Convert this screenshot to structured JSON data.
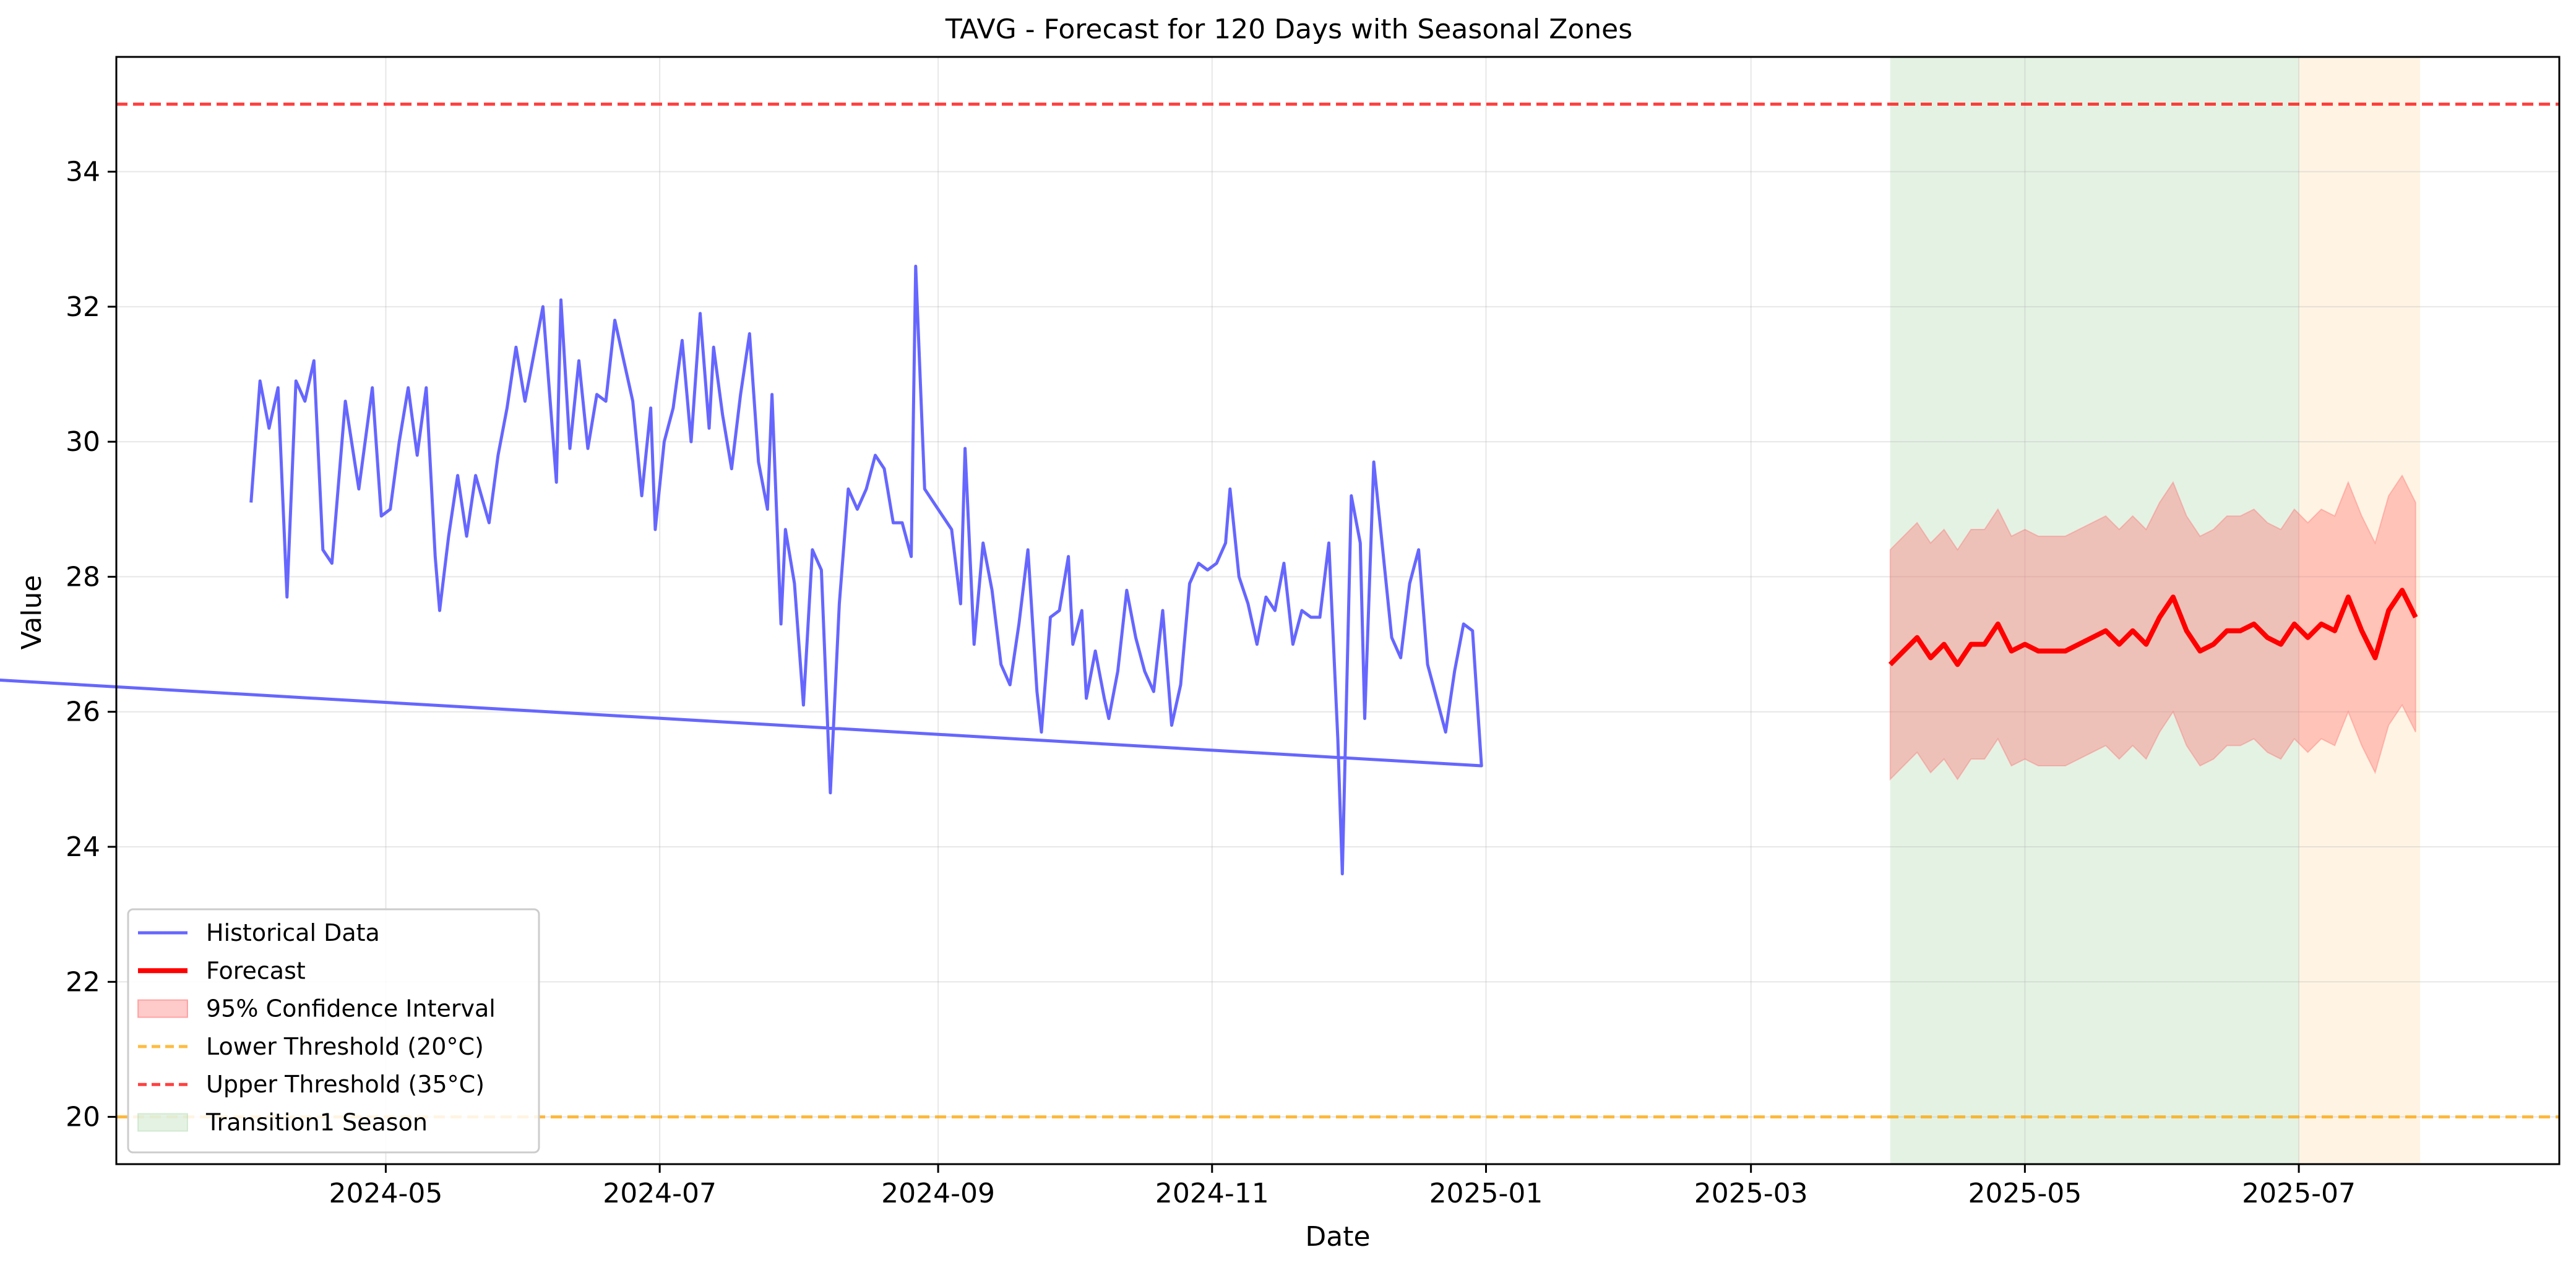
{
  "chart_data": {
    "type": "line",
    "title": "TAVG - Forecast for 120 Days with Seasonal Zones",
    "xlabel": "Date",
    "ylabel": "Value",
    "x_axis_type": "date",
    "x_range": [
      "2024-03-02",
      "2025-08-28"
    ],
    "ylim": [
      19.3,
      35.7
    ],
    "grid": true,
    "legend_position": "lower-left",
    "x_ticks": [
      "2024-05",
      "2024-07",
      "2024-09",
      "2024-11",
      "2025-01",
      "2025-03",
      "2025-05",
      "2025-07"
    ],
    "x_tick_dates": [
      "2024-05-01",
      "2024-07-01",
      "2024-09-01",
      "2024-11-01",
      "2025-01-01",
      "2025-03-01",
      "2025-05-01",
      "2025-07-01"
    ],
    "y_ticks": [
      20,
      22,
      24,
      26,
      28,
      30,
      32,
      34
    ],
    "historical": {
      "name": "Historical Data",
      "color": "#6666ff",
      "points": [
        [
          "2024-04-01",
          29.1
        ],
        [
          "2024-04-03",
          30.9
        ],
        [
          "2024-04-05",
          30.2
        ],
        [
          "2024-04-07",
          30.8
        ],
        [
          "2024-04-09",
          27.7
        ],
        [
          "2024-04-11",
          30.9
        ],
        [
          "2024-04-13",
          30.6
        ],
        [
          "2024-04-15",
          31.2
        ],
        [
          "2024-04-17",
          28.4
        ],
        [
          "2024-04-19",
          28.2
        ],
        [
          "2024-04-22",
          30.6
        ],
        [
          "2024-04-25",
          29.3
        ],
        [
          "2024-04-28",
          30.8
        ],
        [
          "2024-04-30",
          28.9
        ],
        [
          "2024-05-02",
          29.0
        ],
        [
          "2024-05-04",
          30.0
        ],
        [
          "2024-05-06",
          30.8
        ],
        [
          "2024-05-08",
          29.8
        ],
        [
          "2024-05-10",
          30.8
        ],
        [
          "2024-05-12",
          28.3
        ],
        [
          "2024-05-13",
          27.5
        ],
        [
          "2024-05-15",
          28.6
        ],
        [
          "2024-05-17",
          29.5
        ],
        [
          "2024-05-19",
          28.6
        ],
        [
          "2024-05-21",
          29.5
        ],
        [
          "2024-05-24",
          28.8
        ],
        [
          "2024-05-26",
          29.8
        ],
        [
          "2024-05-28",
          30.5
        ],
        [
          "2024-05-30",
          31.4
        ],
        [
          "2024-06-01",
          30.6
        ],
        [
          "2024-06-03",
          31.3
        ],
        [
          "2024-06-05",
          32.0
        ],
        [
          "2024-06-08",
          29.4
        ],
        [
          "2024-06-09",
          32.1
        ],
        [
          "2024-06-11",
          29.9
        ],
        [
          "2024-06-13",
          31.2
        ],
        [
          "2024-06-15",
          29.9
        ],
        [
          "2024-06-17",
          30.7
        ],
        [
          "2024-06-19",
          30.6
        ],
        [
          "2024-06-21",
          31.8
        ],
        [
          "2024-06-23",
          31.2
        ],
        [
          "2024-06-25",
          30.6
        ],
        [
          "2024-06-27",
          29.2
        ],
        [
          "2024-06-29",
          30.5
        ],
        [
          "2024-06-30",
          28.7
        ],
        [
          "2024-07-02",
          30.0
        ],
        [
          "2024-07-04",
          30.5
        ],
        [
          "2024-07-06",
          31.5
        ],
        [
          "2024-07-08",
          30.0
        ],
        [
          "2024-07-10",
          31.9
        ],
        [
          "2024-07-12",
          30.2
        ],
        [
          "2024-07-13",
          31.4
        ],
        [
          "2024-07-15",
          30.4
        ],
        [
          "2024-07-17",
          29.6
        ],
        [
          "2024-07-19",
          30.7
        ],
        [
          "2024-07-21",
          31.6
        ],
        [
          "2024-07-23",
          29.7
        ],
        [
          "2024-07-25",
          29.0
        ],
        [
          "2024-07-26",
          30.7
        ],
        [
          "2024-07-28",
          27.3
        ],
        [
          "2024-07-29",
          28.7
        ],
        [
          "2024-07-31",
          27.9
        ],
        [
          "2024-08-02",
          26.1
        ],
        [
          "2024-08-04",
          28.4
        ],
        [
          "2024-08-06",
          28.1
        ],
        [
          "2024-08-08",
          24.8
        ],
        [
          "2024-08-10",
          27.6
        ],
        [
          "2024-08-12",
          29.3
        ],
        [
          "2024-08-14",
          29.0
        ],
        [
          "2024-08-16",
          29.3
        ],
        [
          "2024-08-18",
          29.8
        ],
        [
          "2024-08-20",
          29.6
        ],
        [
          "2024-08-22",
          28.8
        ],
        [
          "2024-08-24",
          28.8
        ],
        [
          "2024-08-26",
          28.3
        ],
        [
          "2024-08-27",
          32.6
        ],
        [
          "2024-08-29",
          29.3
        ],
        [
          "2024-08-31",
          29.1
        ],
        [
          "2024-09-02",
          28.9
        ],
        [
          "2024-09-04",
          28.7
        ],
        [
          "2024-09-06",
          27.6
        ],
        [
          "2024-09-07",
          29.9
        ],
        [
          "2024-09-09",
          27.0
        ],
        [
          "2024-09-11",
          28.5
        ],
        [
          "2024-09-13",
          27.8
        ],
        [
          "2024-09-15",
          26.7
        ],
        [
          "2024-09-17",
          26.4
        ],
        [
          "2024-09-19",
          27.3
        ],
        [
          "2024-09-21",
          28.4
        ],
        [
          "2024-09-23",
          26.3
        ],
        [
          "2024-09-24",
          25.7
        ],
        [
          "2024-09-26",
          27.4
        ],
        [
          "2024-09-28",
          27.5
        ],
        [
          "2024-09-30",
          28.3
        ],
        [
          "2024-10-01",
          27.0
        ],
        [
          "2024-10-03",
          27.5
        ],
        [
          "2024-10-04",
          26.2
        ],
        [
          "2024-10-06",
          26.9
        ],
        [
          "2024-10-08",
          26.2
        ],
        [
          "2024-10-09",
          25.9
        ],
        [
          "2024-10-11",
          26.6
        ],
        [
          "2024-10-13",
          27.8
        ],
        [
          "2024-10-15",
          27.1
        ],
        [
          "2024-10-17",
          26.6
        ],
        [
          "2024-10-19",
          26.3
        ],
        [
          "2024-10-21",
          27.5
        ],
        [
          "2024-10-23",
          25.8
        ],
        [
          "2024-10-25",
          26.4
        ],
        [
          "2024-10-27",
          27.9
        ],
        [
          "2024-10-29",
          28.2
        ],
        [
          "2024-10-31",
          28.1
        ],
        [
          "2024-11-02",
          28.2
        ],
        [
          "2024-11-04",
          28.5
        ],
        [
          "2024-11-05",
          29.3
        ],
        [
          "2024-11-07",
          28.0
        ],
        [
          "2024-11-09",
          27.6
        ],
        [
          "2024-11-11",
          27.0
        ],
        [
          "2024-11-13",
          27.7
        ],
        [
          "2024-11-15",
          27.5
        ],
        [
          "2024-11-17",
          28.2
        ],
        [
          "2024-11-19",
          27.0
        ],
        [
          "2024-11-21",
          27.5
        ],
        [
          "2024-11-23",
          27.4
        ],
        [
          "2024-11-25",
          27.4
        ],
        [
          "2024-11-27",
          28.5
        ],
        [
          "2024-11-29",
          25.6
        ],
        [
          "2024-11-30",
          23.6
        ],
        [
          "2024-12-02",
          29.2
        ],
        [
          "2024-12-04",
          28.5
        ],
        [
          "2024-12-05",
          25.9
        ],
        [
          "2024-12-07",
          29.7
        ],
        [
          "2024-12-09",
          28.4
        ],
        [
          "2024-12-11",
          27.1
        ],
        [
          "2024-12-13",
          26.8
        ],
        [
          "2024-12-15",
          27.9
        ],
        [
          "2024-12-17",
          28.4
        ],
        [
          "2024-12-19",
          26.7
        ],
        [
          "2024-12-21",
          26.2
        ],
        [
          "2024-12-23",
          25.7
        ],
        [
          "2024-12-25",
          26.6
        ],
        [
          "2024-12-27",
          27.3
        ],
        [
          "2024-12-29",
          27.2
        ],
        [
          "2024-12-31",
          25.2
        ],
        [
          "2024-01-02",
          26.6
        ]
      ]
    },
    "forecast": {
      "name": "Forecast",
      "color": "#ff0000",
      "points": [
        [
          "2025-04-01",
          26.7
        ],
        [
          "2025-04-04",
          26.9
        ],
        [
          "2025-04-07",
          27.1
        ],
        [
          "2025-04-10",
          26.8
        ],
        [
          "2025-04-13",
          27.0
        ],
        [
          "2025-04-16",
          26.7
        ],
        [
          "2025-04-19",
          27.0
        ],
        [
          "2025-04-22",
          27.0
        ],
        [
          "2025-04-25",
          27.3
        ],
        [
          "2025-04-28",
          26.9
        ],
        [
          "2025-05-01",
          27.0
        ],
        [
          "2025-05-04",
          26.9
        ],
        [
          "2025-05-07",
          26.9
        ],
        [
          "2025-05-10",
          26.9
        ],
        [
          "2025-05-13",
          27.0
        ],
        [
          "2025-05-16",
          27.1
        ],
        [
          "2025-05-19",
          27.2
        ],
        [
          "2025-05-22",
          27.0
        ],
        [
          "2025-05-25",
          27.2
        ],
        [
          "2025-05-28",
          27.0
        ],
        [
          "2025-05-31",
          27.4
        ],
        [
          "2025-06-03",
          27.7
        ],
        [
          "2025-06-06",
          27.2
        ],
        [
          "2025-06-09",
          26.9
        ],
        [
          "2025-06-12",
          27.0
        ],
        [
          "2025-06-15",
          27.2
        ],
        [
          "2025-06-18",
          27.2
        ],
        [
          "2025-06-21",
          27.3
        ],
        [
          "2025-06-24",
          27.1
        ],
        [
          "2025-06-27",
          27.0
        ],
        [
          "2025-06-30",
          27.3
        ],
        [
          "2025-07-03",
          27.1
        ],
        [
          "2025-07-06",
          27.3
        ],
        [
          "2025-07-09",
          27.2
        ],
        [
          "2025-07-12",
          27.7
        ],
        [
          "2025-07-15",
          27.2
        ],
        [
          "2025-07-18",
          26.8
        ],
        [
          "2025-07-21",
          27.5
        ],
        [
          "2025-07-24",
          27.8
        ],
        [
          "2025-07-27",
          27.4
        ]
      ]
    },
    "confidence_interval": {
      "name": "95% Confidence Interval",
      "color": "#ff6666",
      "half_width": 1.7
    },
    "thresholds": [
      {
        "name": "Lower Threshold (20°C)",
        "value": 20,
        "color": "#ffa500"
      },
      {
        "name": "Upper Threshold (35°C)",
        "value": 35,
        "color": "#ff0000"
      }
    ],
    "zones": [
      {
        "name": "Transition1 Season",
        "start": "2025-04-01",
        "end": "2025-07-01",
        "color": "#b3d9b3",
        "in_legend": true
      },
      {
        "name": "",
        "start": "2025-07-01",
        "end": "2025-07-28",
        "color": "#ffe0b3",
        "in_legend": false
      }
    ],
    "legend": [
      {
        "label": "Historical Data",
        "kind": "line",
        "color": "#6666ff"
      },
      {
        "label": "Forecast",
        "kind": "line-bold",
        "color": "#ff0000"
      },
      {
        "label": "95% Confidence Interval",
        "kind": "patch",
        "color": "#ff6666"
      },
      {
        "label": "Lower Threshold (20°C)",
        "kind": "dash",
        "color": "#ffa500"
      },
      {
        "label": "Upper Threshold (35°C)",
        "kind": "dash",
        "color": "#ff0000"
      },
      {
        "label": "Transition1 Season",
        "kind": "patch",
        "color": "#b3d9b3"
      }
    ]
  }
}
